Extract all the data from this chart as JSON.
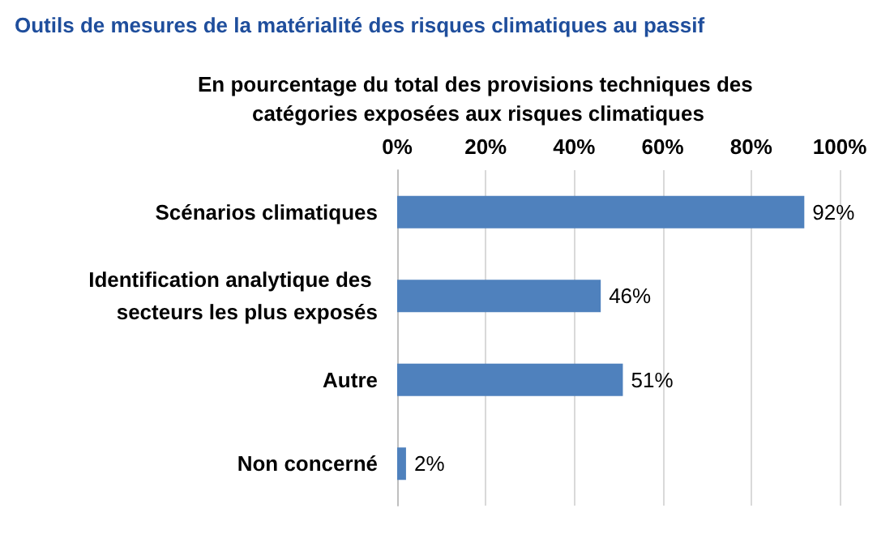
{
  "chart_data": {
    "type": "bar",
    "orientation": "horizontal",
    "title": "Outils de mesures de la matérialité des risques climatiques au passif",
    "subtitle": "En pourcentage du total des provisions techniques des catégories exposées aux risques climatiques",
    "categories": [
      "Scénarios climatiques",
      "Identification analytique des secteurs les plus exposés",
      "Autre",
      "Non concerné"
    ],
    "values": [
      92,
      46,
      51,
      2
    ],
    "value_labels": [
      "92%",
      "46%",
      "51%",
      "2%"
    ],
    "color": "#4f81bd",
    "xlim": [
      0,
      100
    ],
    "xticks": [
      {
        "value": 0,
        "label": "0%"
      },
      {
        "value": 20,
        "label": "20%"
      },
      {
        "value": 40,
        "label": "40%"
      },
      {
        "value": 60,
        "label": "60%"
      },
      {
        "value": 80,
        "label": "80%"
      },
      {
        "value": 100,
        "label": "100%"
      }
    ],
    "grid": "x"
  }
}
